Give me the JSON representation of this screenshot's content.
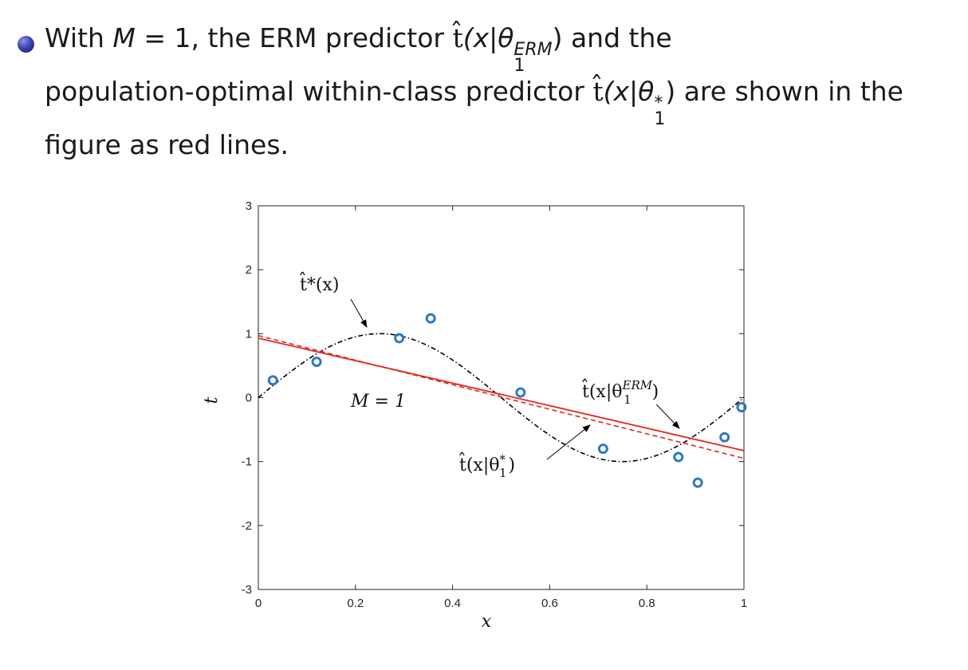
{
  "slide": {
    "lines": [
      {
        "a": "With ",
        "b": "M",
        "c": " = 1, the ERM predictor ",
        "d": "t̂",
        "e": "(x|θ",
        "f": "ERM",
        "g": "1",
        "h": ") and the"
      },
      {
        "a": "population-optimal within-class predictor ",
        "b": "t̂",
        "c": "(x|θ",
        "d": "*",
        "e": "1",
        "f": ") are shown in the"
      },
      {
        "a": "figure as red lines."
      }
    ]
  },
  "chart_data": {
    "type": "scatter",
    "xlabel": "x",
    "ylabel": "t",
    "xlim": [
      0,
      1
    ],
    "ylim": [
      -3,
      3
    ],
    "xticks": [
      "0",
      "0.2",
      "0.4",
      "0.6",
      "0.8",
      "1"
    ],
    "yticks": [
      "-3",
      "-2",
      "-1",
      "0",
      "1",
      "2",
      "3"
    ],
    "grid": false,
    "points": {
      "color": "#2f78c4",
      "x": [
        0.03,
        0.12,
        0.29,
        0.355,
        0.54,
        0.71,
        0.865,
        0.905,
        0.96,
        0.995
      ],
      "y": [
        0.27,
        0.56,
        0.93,
        1.24,
        0.08,
        -0.8,
        -0.93,
        -1.33,
        -0.62,
        -0.15
      ]
    },
    "curve_true": {
      "label": "t̂*(x)",
      "function": "sin(2*pi*x)",
      "style": "dash-dot",
      "color": "#000000"
    },
    "line_erm": {
      "label_t": "t̂(x|θ",
      "label_sup": "ERM",
      "label_sub": "1",
      "label_close": ")",
      "x": [
        0,
        1
      ],
      "y": [
        0.93,
        -0.83
      ],
      "style": "solid",
      "color": "#e0281e"
    },
    "line_opt": {
      "label_t": "t̂(x|θ",
      "label_sup": "*",
      "label_sub": "1",
      "label_close": ")",
      "x": [
        0,
        1
      ],
      "y": [
        0.97,
        -0.95
      ],
      "style": "dashed",
      "color": "#e0281e"
    },
    "annotation_m": "M = 1"
  }
}
